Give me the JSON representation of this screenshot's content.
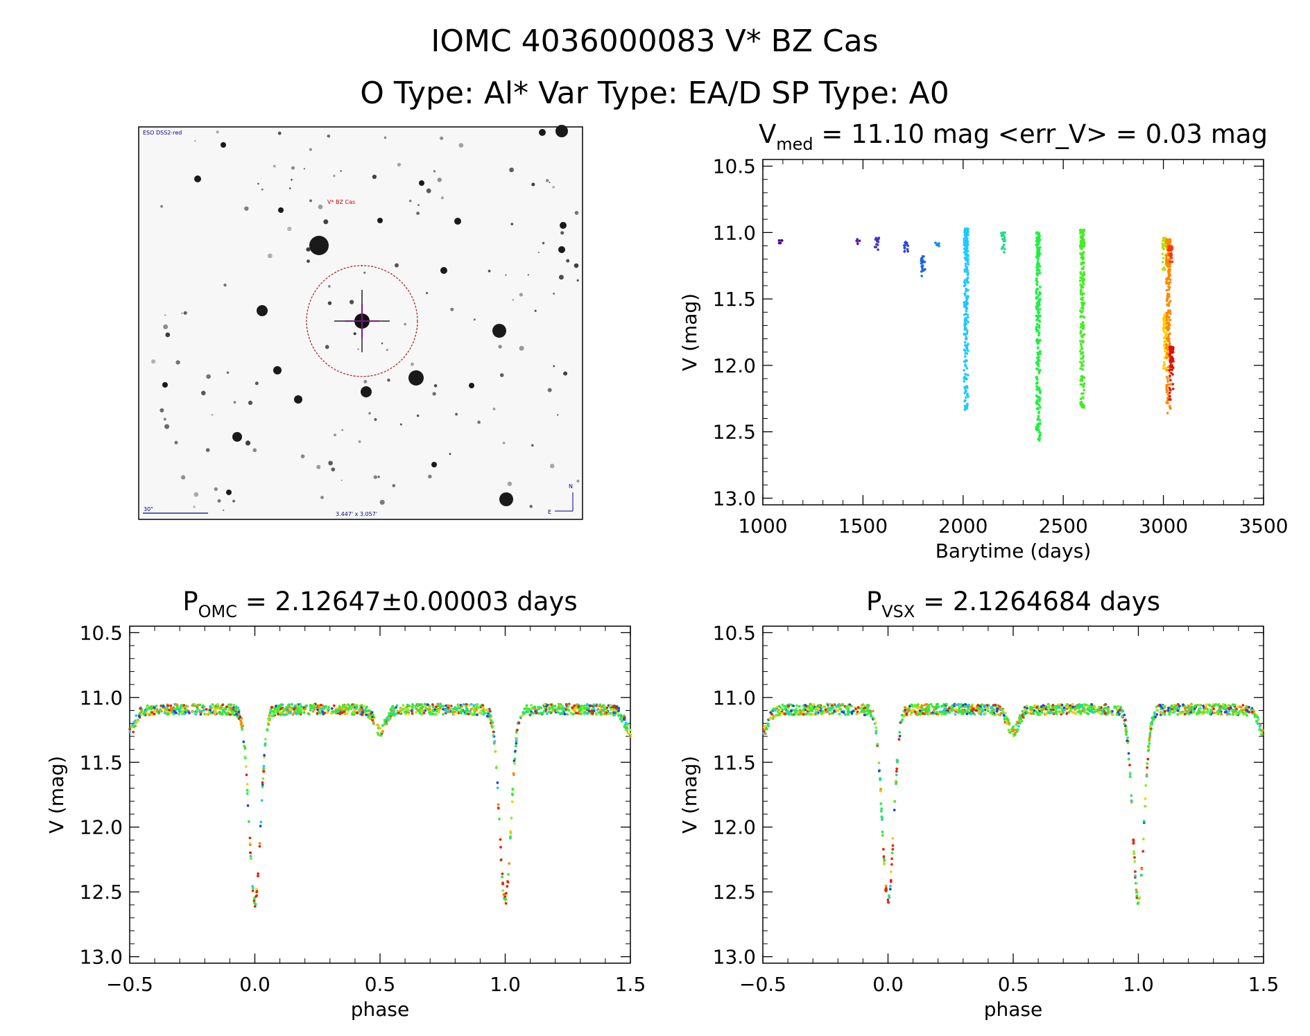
{
  "header": {
    "line1": "IOMC 4036000083   V* BZ Cas",
    "line2": "O Type: Al*  Var Type: EA/D  SP Type: A0"
  },
  "finder": {
    "survey_label": "ESO DSS2-red",
    "target_label": "V* BZ Cas",
    "scale_label": "30\"",
    "fov_label": "3.447' x 3.057'",
    "north_label": "N",
    "east_label": "E"
  },
  "colors": {
    "target_circle": "#a52a2a",
    "crosshair": "#8b008b",
    "finder_text": "#00008b",
    "target_text": "#cc0000"
  },
  "chart_data": [
    {
      "id": "lightcurve",
      "type": "scatter",
      "title_main": "V",
      "title_sub": "med",
      "title_rest": " = 11.10 mag <err_V> = 0.03 mag",
      "xlabel": "Barytime (days)",
      "ylabel": "V (mag)",
      "xlim": [
        1000,
        3500
      ],
      "ylim": [
        13.05,
        10.45
      ],
      "xticks": [
        1000,
        1500,
        2000,
        2500,
        3000,
        3500
      ],
      "xtick_labels": [
        "1000",
        "1500",
        "2000",
        "2500",
        "3000",
        "3500"
      ],
      "yticks": [
        10.5,
        11.0,
        11.5,
        12.0,
        12.5,
        13.0
      ],
      "ytick_labels": [
        "10.5",
        "11.0",
        "11.5",
        "12.0",
        "12.5",
        "13.0"
      ],
      "groups": [
        {
          "x": 1090,
          "ymin": 11.06,
          "ymax": 11.1,
          "color": "#4b0082"
        },
        {
          "x": 1475,
          "ymin": 11.05,
          "ymax": 11.09,
          "color": "#5a1ab8"
        },
        {
          "x": 1570,
          "ymin": 11.04,
          "ymax": 11.13,
          "color": "#4433cc"
        },
        {
          "x": 1715,
          "ymin": 11.06,
          "ymax": 11.15,
          "color": "#2244dd"
        },
        {
          "x": 1800,
          "ymin": 11.18,
          "ymax": 11.33,
          "color": "#1a66dd"
        },
        {
          "x": 1870,
          "ymin": 11.07,
          "ymax": 11.11,
          "color": "#2288ee"
        },
        {
          "x": 2015,
          "ymin": 10.97,
          "ymax": 12.34,
          "color": "#1ec8ff"
        },
        {
          "x": 2200,
          "ymin": 11.0,
          "ymax": 11.15,
          "color": "#22dd88"
        },
        {
          "x": 2375,
          "ymin": 11.0,
          "ymax": 12.58,
          "color": "#22ee44"
        },
        {
          "x": 2595,
          "ymin": 10.98,
          "ymax": 12.32,
          "color": "#44ee22"
        },
        {
          "x": 3005,
          "ymin": 11.04,
          "ymax": 11.28,
          "color": "#bbdd00"
        },
        {
          "x": 3010,
          "ymin": 11.62,
          "ymax": 12.05,
          "color": "#ffcc00"
        },
        {
          "x": 3025,
          "ymin": 11.05,
          "ymax": 12.36,
          "color": "#ff8800"
        },
        {
          "x": 3035,
          "ymin": 11.1,
          "ymax": 11.22,
          "color": "#ff3300"
        },
        {
          "x": 3040,
          "ymin": 11.86,
          "ymax": 12.28,
          "color": "#dd1100"
        }
      ]
    },
    {
      "id": "phase_omc",
      "type": "scatter",
      "title_main": "P",
      "title_sub": "OMC",
      "title_rest": " = 2.12647±0.00003 days",
      "xlabel": "phase",
      "ylabel": "V (mag)",
      "xlim": [
        -0.5,
        1.5
      ],
      "ylim": [
        13.05,
        10.45
      ],
      "xticks": [
        -0.5,
        0.0,
        0.5,
        1.0,
        1.5
      ],
      "xtick_labels": [
        "−0.5",
        "0.0",
        "0.5",
        "1.0",
        "1.5"
      ],
      "yticks": [
        10.5,
        11.0,
        11.5,
        12.0,
        12.5,
        13.0
      ],
      "ytick_labels": [
        "10.5",
        "11.0",
        "11.5",
        "12.0",
        "12.5",
        "13.0"
      ],
      "model": {
        "base": 11.09,
        "primary_depth": 1.47,
        "primary_width": 0.032,
        "secondary_depth": 0.16,
        "secondary_width": 0.03,
        "curvature": 0.22
      }
    },
    {
      "id": "phase_vsx",
      "type": "scatter",
      "title_main": "P",
      "title_sub": "VSX",
      "title_rest": " = 2.1264684 days",
      "xlabel": "phase",
      "ylabel": "V (mag)",
      "xlim": [
        -0.5,
        1.5
      ],
      "ylim": [
        13.05,
        10.45
      ],
      "xticks": [
        -0.5,
        0.0,
        0.5,
        1.0,
        1.5
      ],
      "xtick_labels": [
        "−0.5",
        "0.0",
        "0.5",
        "1.0",
        "1.5"
      ],
      "yticks": [
        10.5,
        11.0,
        11.5,
        12.0,
        12.5,
        13.0
      ],
      "ytick_labels": [
        "10.5",
        "11.0",
        "11.5",
        "12.0",
        "12.5",
        "13.0"
      ],
      "model": {
        "base": 11.09,
        "primary_depth": 1.47,
        "primary_width": 0.032,
        "secondary_depth": 0.16,
        "secondary_width": 0.03,
        "curvature": 0.22
      }
    }
  ]
}
